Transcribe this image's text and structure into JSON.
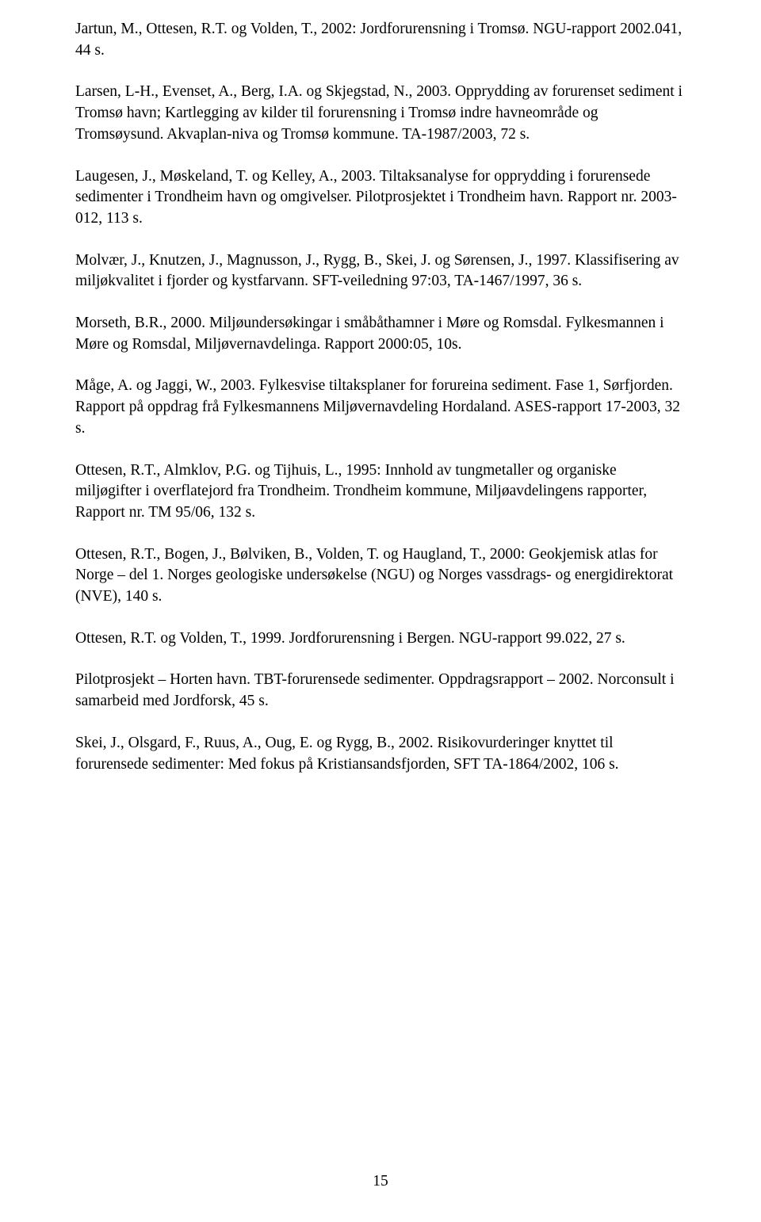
{
  "references": [
    "Jartun, M., Ottesen, R.T. og Volden, T., 2002: Jordforurensning i Tromsø. NGU-rapport 2002.041, 44 s.",
    "Larsen, L-H., Evenset, A., Berg, I.A. og Skjegstad, N., 2003. Opprydding av forurenset sediment i Tromsø havn; Kartlegging av kilder til forurensning i Tromsø indre havneområde og Tromsøysund. Akvaplan-niva og Tromsø kommune. TA-1987/2003, 72 s.",
    "Laugesen, J., Møskeland, T. og Kelley, A., 2003. Tiltaksanalyse for opprydding i forurensede sedimenter i Trondheim havn og omgivelser. Pilotprosjektet i Trondheim havn. Rapport nr. 2003-012, 113 s.",
    "Molvær, J., Knutzen, J., Magnusson, J., Rygg, B., Skei, J. og Sørensen, J., 1997. Klassifisering av miljøkvalitet i fjorder og kystfarvann. SFT-veiledning 97:03, TA-1467/1997, 36 s.",
    "Morseth, B.R., 2000. Miljøundersøkingar i småbåthamner i Møre og Romsdal. Fylkesmannen i Møre og Romsdal, Miljøvernavdelinga. Rapport 2000:05, 10s.",
    "Måge, A. og Jaggi, W., 2003. Fylkesvise tiltaksplaner for forureina sediment. Fase 1, Sørfjorden. Rapport på oppdrag frå Fylkesmannens Miljøvernavdeling Hordaland. ASES-rapport 17-2003, 32 s.",
    "Ottesen, R.T., Almklov, P.G. og Tijhuis, L., 1995: Innhold av tungmetaller og organiske miljøgifter i overflatejord fra Trondheim. Trondheim kommune, Miljøavdelingens rapporter, Rapport nr. TM 95/06, 132 s.",
    "Ottesen, R.T., Bogen, J., Bølviken, B., Volden, T. og Haugland, T., 2000: Geokjemisk atlas for Norge – del 1. Norges geologiske undersøkelse (NGU) og Norges vassdrags- og energidirektorat (NVE), 140 s.",
    "Ottesen, R.T. og Volden, T., 1999. Jordforurensning i Bergen. NGU-rapport 99.022, 27 s.",
    "Pilotprosjekt – Horten havn. TBT-forurensede sedimenter. Oppdragsrapport – 2002. Norconsult i samarbeid med Jordforsk, 45 s.",
    "Skei, J., Olsgard, F., Ruus, A., Oug, E. og Rygg, B., 2002. Risikovurderinger knyttet til forurensede sedimenter: Med fokus på Kristiansandsfjorden, SFT TA-1864/2002, 106 s."
  ],
  "pageNumber": "15"
}
